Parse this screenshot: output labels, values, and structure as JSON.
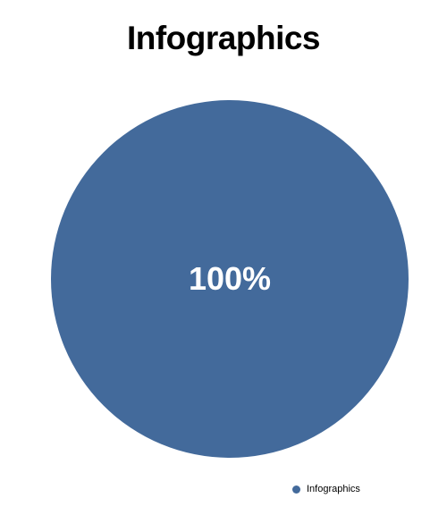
{
  "chart_data": {
    "type": "pie",
    "title": "Infographics",
    "series": [
      {
        "name": "Infographics",
        "values": [
          100
        ],
        "label": "100%",
        "color": "#436a9b"
      }
    ],
    "legend_placement": "bottom-right",
    "colors": {
      "slice": "#436a9b",
      "slice_label": "#ffffff",
      "background": "#ffffff"
    }
  }
}
